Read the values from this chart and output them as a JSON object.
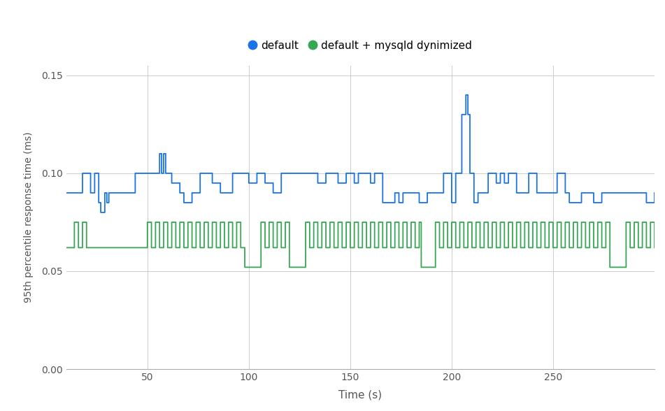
{
  "xlabel": "Time (s)",
  "ylabel": "95th percentile response time (ms)",
  "legend_labels": [
    "default",
    "default + mysqld dynimized"
  ],
  "line_colors": [
    "#1a73e8",
    "#34a853"
  ],
  "xlim": [
    10,
    300
  ],
  "ylim": [
    0.0,
    0.155
  ],
  "yticks": [
    0.0,
    0.05,
    0.1,
    0.15
  ],
  "xticks": [
    50,
    100,
    150,
    200,
    250
  ],
  "grid_color": "#cccccc",
  "background_color": "#ffffff",
  "figsize": [
    9.51,
    5.88
  ],
  "dpi": 100
}
